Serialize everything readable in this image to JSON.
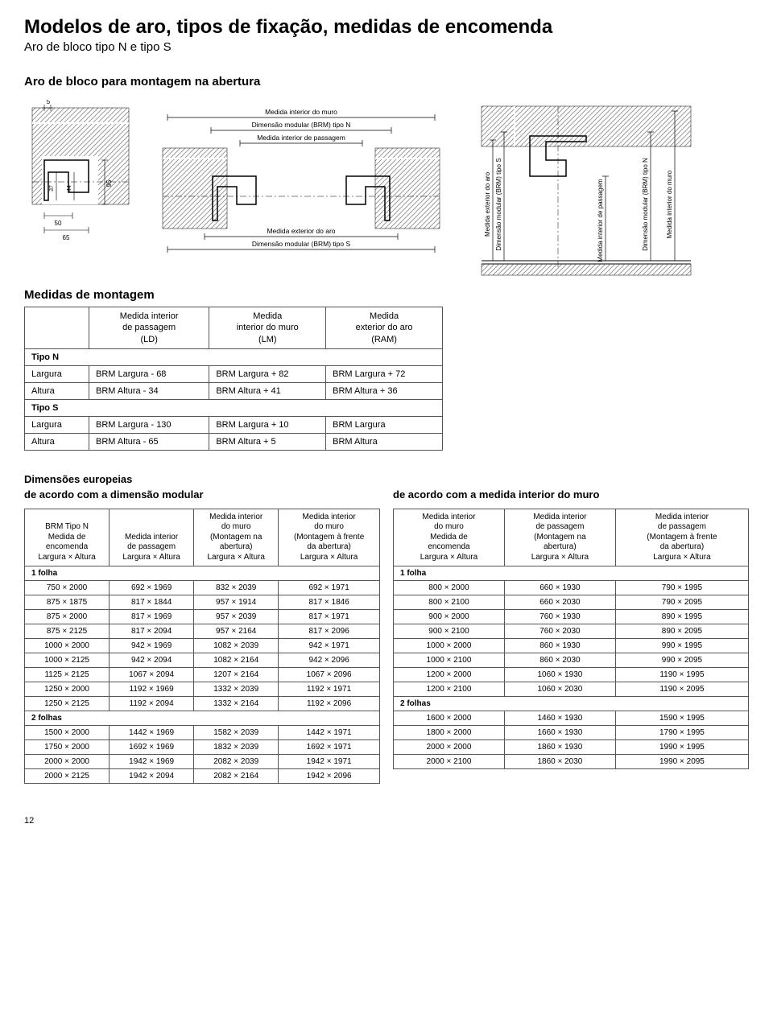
{
  "page": {
    "title": "Modelos de aro, tipos de fixação, medidas de encomenda",
    "subtitle": "Aro de bloco tipo N e tipo S",
    "section1": "Aro de bloco para montagem na abertura",
    "number": "12"
  },
  "diagram1_dims": {
    "d5": "5",
    "d95": "95",
    "d37": "37",
    "d44": "44",
    "d50": "50",
    "d65": "65"
  },
  "diagram2_labels": {
    "l1": "Medida interior do muro",
    "l2": "Dimensão modular (BRM) tipo N",
    "l3": "Medida interior de passagem",
    "l4": "Medida exterior do aro",
    "l5": "Dimensão modular (BRM) tipo S"
  },
  "diagram3_labels": {
    "v1": "Medida exterior do aro",
    "v2": "Dimensão modular (BRM) tipo S",
    "v3": "Medida interior de passagem",
    "v4": "Dimensão modular (BRM) tipo N",
    "v5": "Medida interior do muro"
  },
  "montagem": {
    "title": "Medidas de montagem",
    "headers": {
      "c0": "",
      "c1": "Medida interior\nde passagem\n(LD)",
      "c2": "Medida\ninterior do muro\n(LM)",
      "c3": "Medida\nexterior do aro\n(RAM)"
    },
    "groups": [
      {
        "label": "Tipo N",
        "rows": [
          {
            "h": "Largura",
            "c1": "BRM Largura - 68",
            "c2": "BRM Largura + 82",
            "c3": "BRM Largura + 72"
          },
          {
            "h": "Altura",
            "c1": "BRM Altura - 34",
            "c2": "BRM Altura + 41",
            "c3": "BRM Altura + 36"
          }
        ]
      },
      {
        "label": "Tipo S",
        "rows": [
          {
            "h": "Largura",
            "c1": "BRM Largura - 130",
            "c2": "BRM Largura + 10",
            "c3": "BRM Largura"
          },
          {
            "h": "Altura",
            "c1": "BRM Altura - 65",
            "c2": "BRM Altura + 5",
            "c3": "BRM Altura"
          }
        ]
      }
    ]
  },
  "euro": {
    "title": "Dimensões europeias",
    "left_sub": "de acordo com a dimensão modular",
    "right_sub": "de acordo com a medida interior do muro",
    "left": {
      "headers": {
        "c0": "BRM Tipo N\nMedida de\nencomenda\nLargura × Altura",
        "c1": "Medida interior\nde passagem\nLargura × Altura",
        "c2": "Medida interior\ndo muro\n(Montagem na\nabertura)\nLargura × Altura",
        "c3": "Medida interior\ndo muro\n(Montagem à frente\nda abertura)\nLargura × Altura"
      },
      "sections": [
        {
          "label": "1 folha",
          "rows": [
            [
              "750 × 2000",
              "692 × 1969",
              "832 × 2039",
              "692 × 1971"
            ],
            [
              "875 × 1875",
              "817 × 1844",
              "957 × 1914",
              "817 × 1846"
            ],
            [
              "875 × 2000",
              "817 × 1969",
              "957 × 2039",
              "817 × 1971"
            ],
            [
              "875 × 2125",
              "817 × 2094",
              "957 × 2164",
              "817 × 2096"
            ],
            [
              "1000 × 2000",
              "942 × 1969",
              "1082 × 2039",
              "942 × 1971"
            ],
            [
              "1000 × 2125",
              "942 × 2094",
              "1082 × 2164",
              "942 × 2096"
            ],
            [
              "1125 × 2125",
              "1067 × 2094",
              "1207 × 2164",
              "1067 × 2096"
            ],
            [
              "1250 × 2000",
              "1192 × 1969",
              "1332 × 2039",
              "1192 × 1971"
            ],
            [
              "1250 × 2125",
              "1192 × 2094",
              "1332 × 2164",
              "1192 × 2096"
            ]
          ]
        },
        {
          "label": "2 folhas",
          "rows": [
            [
              "1500 × 2000",
              "1442 × 1969",
              "1582 × 2039",
              "1442 × 1971"
            ],
            [
              "1750 × 2000",
              "1692 × 1969",
              "1832 × 2039",
              "1692 × 1971"
            ],
            [
              "2000 × 2000",
              "1942 × 1969",
              "2082 × 2039",
              "1942 × 1971"
            ],
            [
              "2000 × 2125",
              "1942 × 2094",
              "2082 × 2164",
              "1942 × 2096"
            ]
          ]
        }
      ]
    },
    "right": {
      "headers": {
        "c0": "Medida interior\ndo muro\nMedida de\nencomenda\nLargura × Altura",
        "c1": "Medida interior\nde passagem\n(Montagem na\nabertura)\nLargura × Altura",
        "c2": "Medida interior\nde passagem\n(Montagem à frente\nda abertura)\nLargura × Altura"
      },
      "sections": [
        {
          "label": "1 folha",
          "rows": [
            [
              "800 × 2000",
              "660 × 1930",
              "790 × 1995"
            ],
            [
              "800 × 2100",
              "660 × 2030",
              "790 × 2095"
            ],
            [
              "900 × 2000",
              "760 × 1930",
              "890 × 1995"
            ],
            [
              "900 × 2100",
              "760 × 2030",
              "890 × 2095"
            ],
            [
              "1000 × 2000",
              "860 × 1930",
              "990 × 1995"
            ],
            [
              "1000 × 2100",
              "860 × 2030",
              "990 × 2095"
            ],
            [
              "1200 × 2000",
              "1060 × 1930",
              "1190 × 1995"
            ],
            [
              "1200 × 2100",
              "1060 × 2030",
              "1190 × 2095"
            ]
          ]
        },
        {
          "label": "2 folhas",
          "rows": [
            [
              "1600 × 2000",
              "1460 × 1930",
              "1590 × 1995"
            ],
            [
              "1800 × 2000",
              "1660 × 1930",
              "1790 × 1995"
            ],
            [
              "2000 × 2000",
              "1860 × 1930",
              "1990 × 1995"
            ],
            [
              "2000 × 2100",
              "1860 × 2030",
              "1990 × 2095"
            ]
          ]
        }
      ]
    }
  },
  "colors": {
    "line": "#000000",
    "hatch": "#888888",
    "profile": "#000000"
  }
}
